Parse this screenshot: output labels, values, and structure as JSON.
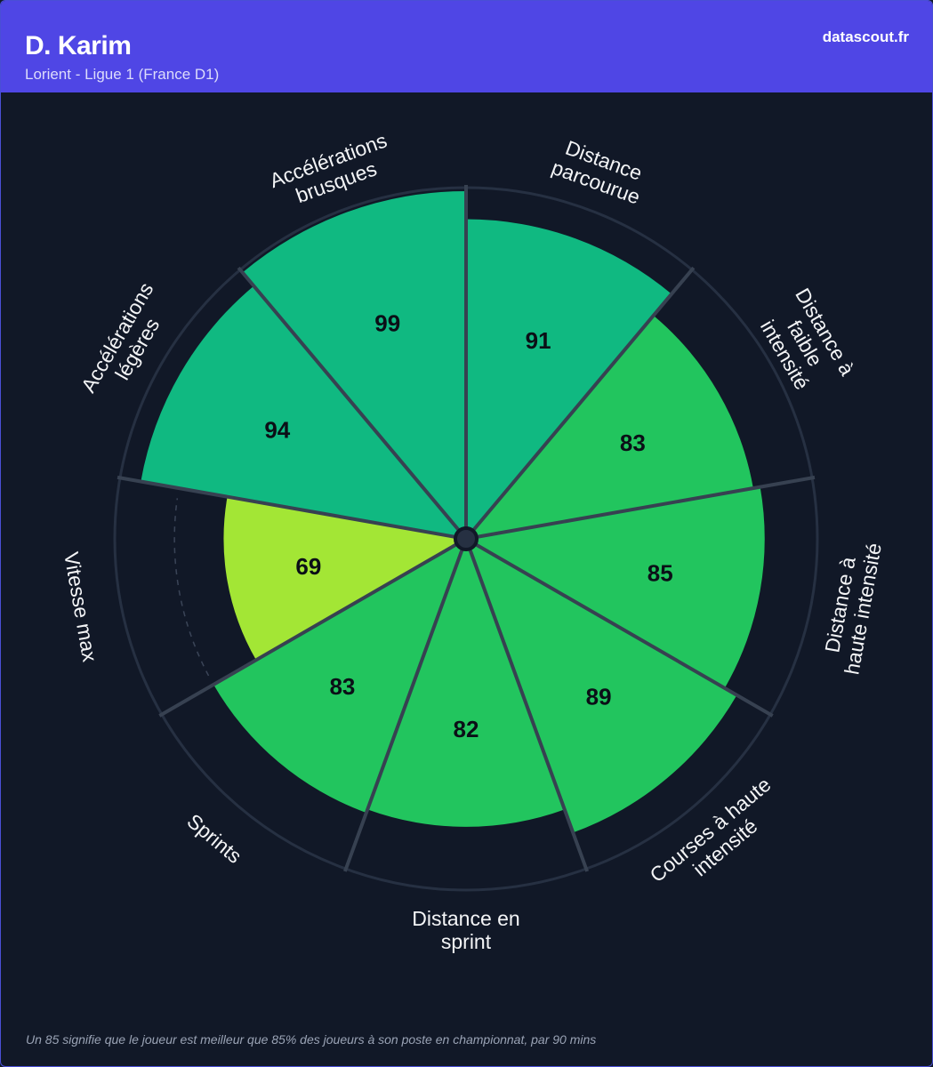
{
  "header": {
    "player_name": "D. Karim",
    "club_league": "Lorient - Ligue 1 (France D1)",
    "brand": "datascout.fr"
  },
  "footnote": "Un 85 signifie que le joueur est meilleur que 85% des joueurs à son poste en championnat, par 90 mins",
  "colors": {
    "header_bg": "#4f46e5",
    "chart_bg": "#111827",
    "tier_high": "#10b981",
    "tier_mid": "#22c55e",
    "tier_low": "#a3e635",
    "divider": "#374151"
  },
  "chart_data": {
    "type": "radial-bar",
    "scale": [
      0,
      100
    ],
    "categories": [
      {
        "label": [
          "Distance",
          "parcourue"
        ],
        "value": 91,
        "tier": "high"
      },
      {
        "label": [
          "Distance à",
          "faible",
          "intensité"
        ],
        "value": 83,
        "tier": "mid"
      },
      {
        "label": [
          "Distance à",
          "haute intensité"
        ],
        "value": 85,
        "tier": "mid"
      },
      {
        "label": [
          "Courses à haute",
          "intensité"
        ],
        "value": 89,
        "tier": "mid"
      },
      {
        "label": [
          "Distance en",
          "sprint"
        ],
        "value": 82,
        "tier": "mid"
      },
      {
        "label": [
          "Sprints"
        ],
        "value": 83,
        "tier": "mid"
      },
      {
        "label": [
          "Vitesse max"
        ],
        "value": 69,
        "tier": "low"
      },
      {
        "label": [
          "Accélérations",
          "légères"
        ],
        "value": 94,
        "tier": "high"
      },
      {
        "label": [
          "Accélérations",
          "brusques"
        ],
        "value": 99,
        "tier": "high"
      }
    ]
  }
}
